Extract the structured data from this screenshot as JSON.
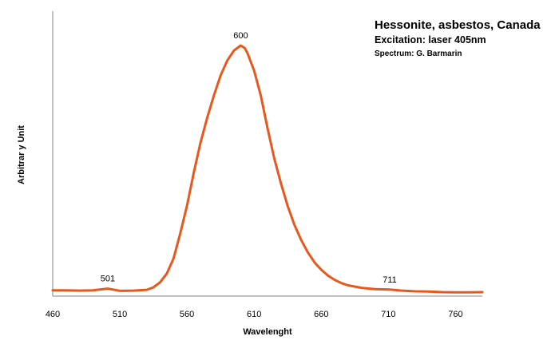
{
  "chart_data": {
    "type": "line",
    "title": "Hessonite, asbestos, Canada",
    "subtitle": "Excitation: laser 405nm",
    "credit": "Spectrum: G. Barmarin",
    "xlabel": "Wavelenght",
    "ylabel": "Arbitrar y Unit",
    "xlim": [
      460,
      780
    ],
    "ylim": [
      0,
      100
    ],
    "xticks": [
      "460",
      "510",
      "560",
      "610",
      "660",
      "710",
      "760"
    ],
    "grid": false,
    "legend": "none",
    "line_color": "#e8581c",
    "series": [
      {
        "x": [
          460,
          470,
          480,
          490,
          495,
          501,
          505,
          510,
          520,
          530,
          535,
          540,
          545,
          550,
          555,
          560,
          565,
          570,
          575,
          580,
          585,
          590,
          595,
          600,
          603,
          605,
          610,
          615,
          620,
          625,
          630,
          635,
          640,
          645,
          650,
          655,
          660,
          665,
          670,
          675,
          680,
          690,
          700,
          711,
          720,
          730,
          740,
          750,
          760,
          770,
          780
        ],
        "y": [
          2.3,
          2.3,
          2.2,
          2.3,
          2.6,
          3.0,
          2.6,
          2.1,
          2.2,
          2.5,
          3.5,
          5.5,
          9.0,
          15.0,
          25.0,
          36.0,
          49.0,
          61.0,
          71.0,
          80.0,
          88.0,
          94.0,
          98.0,
          100.0,
          99.0,
          97.0,
          90.0,
          80.0,
          67.0,
          55.0,
          45.0,
          36.0,
          28.5,
          22.5,
          17.5,
          13.5,
          10.5,
          8.2,
          6.5,
          5.2,
          4.3,
          3.3,
          2.8,
          2.6,
          2.2,
          1.9,
          1.8,
          1.6,
          1.5,
          1.5,
          1.6
        ]
      }
    ],
    "peak_labels": [
      {
        "x": 501,
        "label": "501"
      },
      {
        "x": 600,
        "label": "600"
      },
      {
        "x": 711,
        "label": "711"
      }
    ]
  }
}
